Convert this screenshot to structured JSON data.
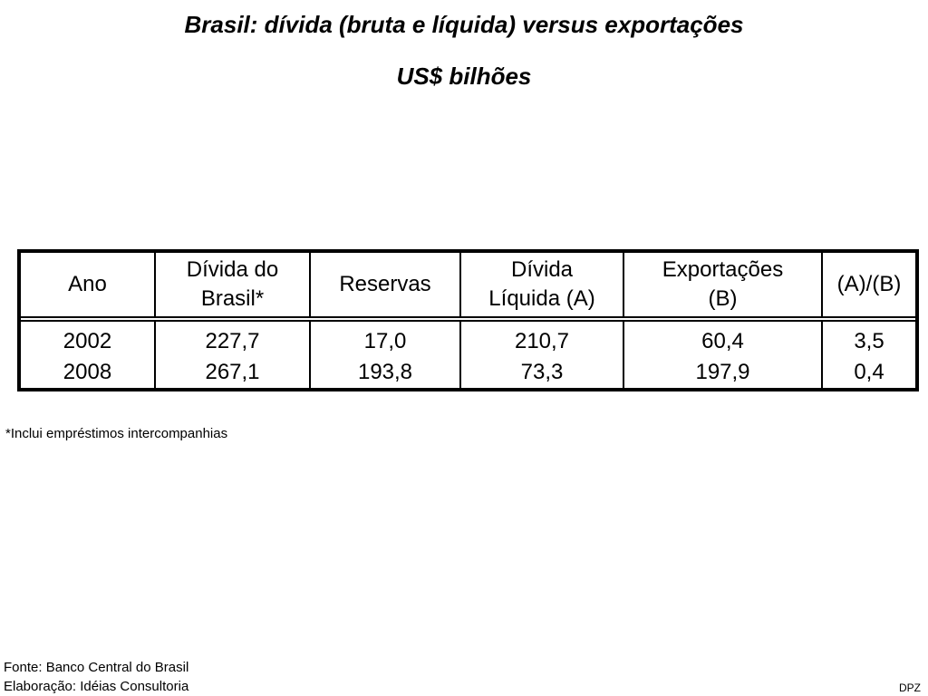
{
  "title": {
    "line1": "Brasil: dívida (bruta e líquida) versus exportações",
    "line2": "US$ bilhões"
  },
  "table": {
    "headers": [
      [
        "Ano"
      ],
      [
        "Dívida do",
        "Brasil*"
      ],
      [
        "Reservas"
      ],
      [
        "Dívida",
        "Líquida (A)"
      ],
      [
        "Exportações",
        "(B)"
      ],
      [
        "(A)/(B)"
      ]
    ],
    "rows": [
      [
        "2002",
        "227,7",
        "17,0",
        "210,7",
        "60,4",
        "3,5"
      ],
      [
        "2008",
        "267,1",
        "193,8",
        "73,3",
        "197,9",
        "0,4"
      ]
    ]
  },
  "footnote": "*Inclui empréstimos intercompanhias",
  "source": {
    "line1": "Fonte: Banco Central do Brasil",
    "line2": "Elaboração: Idéias Consultoria"
  },
  "corner_label": "DPZ"
}
